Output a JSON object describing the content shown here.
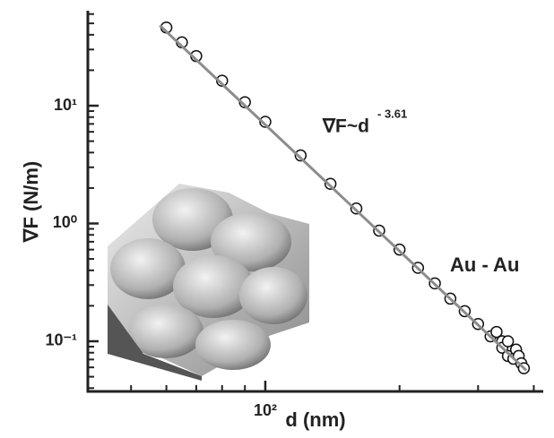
{
  "chart_data": {
    "type": "scatter",
    "xlabel": "d (nm)",
    "ylabel": "∇F (N/m)",
    "annotations": [
      {
        "text": "∇F~d",
        "exponent": "- 3.61"
      },
      {
        "text": "Au - Au"
      }
    ],
    "xscale": "log",
    "yscale": "log",
    "xlim": [
      40,
      420
    ],
    "ylim": [
      0.0375,
      64
    ],
    "xticks": [
      {
        "value": 100,
        "label": "10²"
      }
    ],
    "yticks": [
      {
        "value": 0.1,
        "label": "10⁻¹"
      },
      {
        "value": 1,
        "label": "10⁰"
      },
      {
        "value": 10,
        "label": "10¹"
      }
    ],
    "xminorticks": [
      40,
      50,
      60,
      70,
      80,
      90,
      200,
      300,
      400
    ],
    "yminorticks": [
      0.04,
      0.05,
      0.06,
      0.07,
      0.08,
      0.09,
      0.2,
      0.3,
      0.4,
      0.5,
      0.6,
      0.7,
      0.8,
      0.9,
      2,
      3,
      4,
      5,
      6,
      7,
      8,
      9,
      20,
      30,
      40,
      50,
      60
    ],
    "series": [
      {
        "kind": "scatter",
        "color": "#111111",
        "x": [
          60,
          65,
          70,
          80,
          90,
          100,
          120,
          140,
          160,
          180,
          200,
          220,
          240,
          260,
          280,
          300,
          320,
          330,
          340,
          340,
          350,
          350,
          360,
          365,
          370,
          375,
          380
        ],
        "values": [
          46.1,
          34.5,
          26.4,
          16.3,
          10.7,
          7.3,
          3.78,
          2.17,
          1.34,
          0.87,
          0.6,
          0.42,
          0.31,
          0.23,
          0.18,
          0.14,
          0.11,
          0.12,
          0.1,
          0.088,
          0.1,
          0.075,
          0.071,
          0.085,
          0.075,
          0.065,
          0.059
        ]
      },
      {
        "kind": "line",
        "color": "#8c8c8c",
        "x": [
          58,
          385
        ],
        "values": [
          48,
          0.0565
        ]
      }
    ]
  }
}
